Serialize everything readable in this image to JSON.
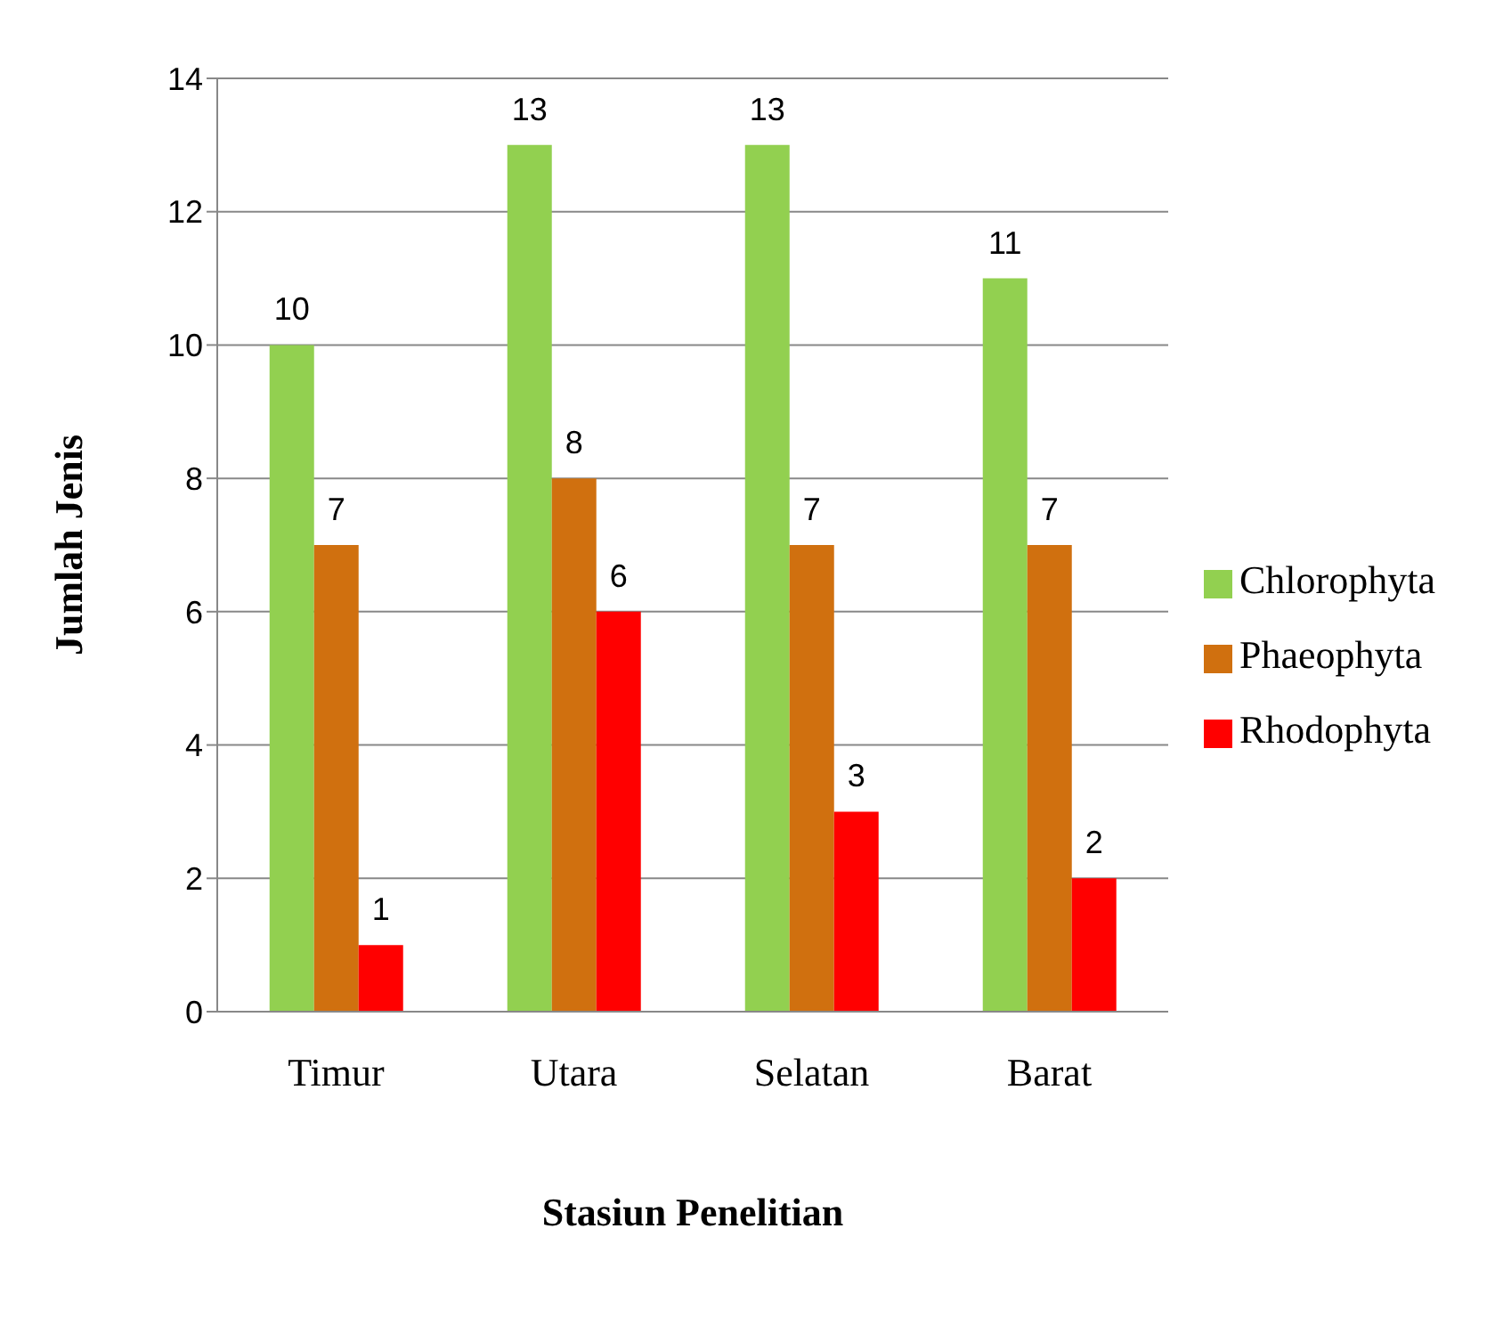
{
  "chart_data": {
    "type": "bar",
    "xlabel": "Stasiun Penelitian",
    "ylabel": "Jumlah Jenis",
    "categories": [
      "Timur",
      "Utara",
      "Selatan",
      "Barat"
    ],
    "series": [
      {
        "name": "Chlorophyta",
        "color": "#92d050",
        "values": [
          10,
          13,
          13,
          11
        ]
      },
      {
        "name": "Phaeophyta",
        "color": "#d0700f",
        "values": [
          7,
          8,
          7,
          7
        ]
      },
      {
        "name": "Rhodophyta",
        "color": "#ff0000",
        "values": [
          1,
          6,
          3,
          2
        ]
      }
    ],
    "ylim": [
      0,
      14
    ],
    "yticks": [
      0,
      2,
      4,
      6,
      8,
      10,
      12,
      14
    ],
    "grid": "y",
    "legend": "right",
    "data_labels": true
  }
}
